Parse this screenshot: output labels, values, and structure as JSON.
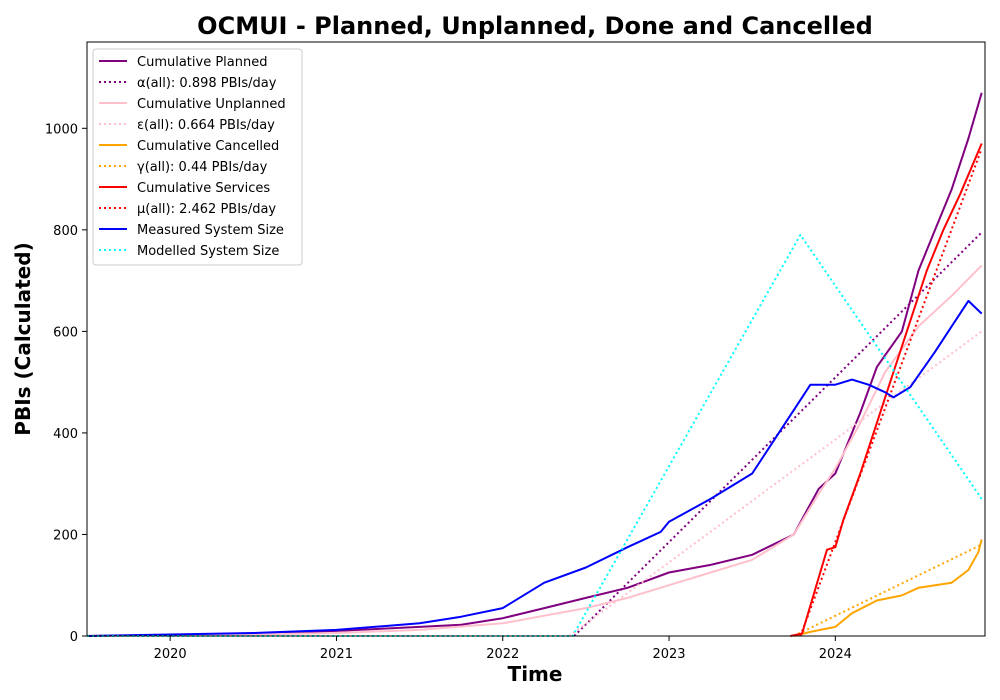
{
  "chart_data": {
    "type": "line",
    "title": "OCMUI - Planned, Unplanned, Done  and Cancelled",
    "xlabel": "Time",
    "ylabel": "PBIs (Calculated)",
    "xlim": [
      2019.5,
      2024.9
    ],
    "ylim": [
      0,
      1170
    ],
    "x_ticks": [
      2020,
      2021,
      2022,
      2023,
      2024
    ],
    "x_tick_labels": [
      "2020",
      "2021",
      "2022",
      "2023",
      "2024"
    ],
    "y_ticks": [
      0,
      200,
      400,
      600,
      800,
      1000
    ],
    "y_tick_labels": [
      "0",
      "200",
      "400",
      "600",
      "800",
      "1000"
    ],
    "grid": false,
    "legend_position": "top-left",
    "series": [
      {
        "name": "Cumulative Planned",
        "color": "#800080",
        "style": "solid",
        "x": [
          2019.5,
          2020.0,
          2020.5,
          2021.0,
          2021.5,
          2021.75,
          2022.0,
          2022.25,
          2022.5,
          2022.75,
          2023.0,
          2023.25,
          2023.5,
          2023.75,
          2023.9,
          2024.0,
          2024.15,
          2024.25,
          2024.4,
          2024.5,
          2024.6,
          2024.7,
          2024.8,
          2024.88
        ],
        "y": [
          0,
          2,
          5,
          10,
          18,
          22,
          35,
          55,
          75,
          95,
          125,
          140,
          160,
          200,
          290,
          320,
          440,
          530,
          600,
          720,
          800,
          880,
          980,
          1070
        ]
      },
      {
        "name": "α(all): 0.898 PBIs/day",
        "color": "#800080",
        "style": "dotted",
        "x": [
          2022.43,
          2024.88
        ],
        "y": [
          0,
          795
        ]
      },
      {
        "name": "Cumulative Unplanned",
        "color": "#ffc0cb",
        "style": "solid",
        "x": [
          2019.5,
          2020.0,
          2020.5,
          2021.0,
          2021.5,
          2022.0,
          2022.25,
          2022.5,
          2022.75,
          2023.0,
          2023.25,
          2023.5,
          2023.75,
          2023.9,
          2024.0,
          2024.15,
          2024.3,
          2024.5,
          2024.7,
          2024.88
        ],
        "y": [
          0,
          1,
          3,
          6,
          12,
          25,
          40,
          55,
          75,
          100,
          125,
          150,
          200,
          280,
          330,
          420,
          520,
          610,
          670,
          730
        ]
      },
      {
        "name": "ε(all): 0.664 PBIs/day",
        "color": "#ffc0cb",
        "style": "dotted",
        "x": [
          2022.4,
          2024.88
        ],
        "y": [
          0,
          600
        ]
      },
      {
        "name": "Cumulative Cancelled",
        "color": "#ffa500",
        "style": "solid",
        "x": [
          2023.75,
          2023.85,
          2024.0,
          2024.1,
          2024.25,
          2024.4,
          2024.5,
          2024.7,
          2024.8,
          2024.86,
          2024.88
        ],
        "y": [
          0,
          8,
          18,
          45,
          70,
          80,
          95,
          105,
          130,
          165,
          190
        ]
      },
      {
        "name": "γ(all): 0.44 PBIs/day",
        "color": "#ffa500",
        "style": "dotted",
        "x": [
          2023.75,
          2024.88
        ],
        "y": [
          0,
          180
        ]
      },
      {
        "name": "Cumulative Services",
        "color": "#ff0000",
        "style": "solid",
        "x": [
          2023.73,
          2023.8,
          2023.85,
          2023.95,
          2024.0,
          2024.05,
          2024.15,
          2024.25,
          2024.35,
          2024.45,
          2024.55,
          2024.65,
          2024.75,
          2024.88
        ],
        "y": [
          0,
          5,
          60,
          170,
          175,
          230,
          320,
          420,
          520,
          620,
          720,
          800,
          870,
          970
        ]
      },
      {
        "name": "μ(all): 2.462 PBIs/day",
        "color": "#ff0000",
        "style": "dotted",
        "x": [
          2023.79,
          2024.88
        ],
        "y": [
          0,
          960
        ]
      },
      {
        "name": "Measured System Size",
        "color": "#0000ff",
        "style": "solid",
        "x": [
          2019.5,
          2020.0,
          2020.5,
          2021.0,
          2021.5,
          2021.75,
          2022.0,
          2022.25,
          2022.5,
          2022.75,
          2022.95,
          2023.0,
          2023.25,
          2023.5,
          2023.6,
          2023.75,
          2023.85,
          2024.0,
          2024.1,
          2024.2,
          2024.3,
          2024.35,
          2024.45,
          2024.6,
          2024.7,
          2024.8,
          2024.88
        ],
        "y": [
          0,
          3,
          6,
          12,
          25,
          38,
          55,
          105,
          135,
          175,
          205,
          225,
          270,
          320,
          370,
          445,
          495,
          495,
          505,
          495,
          480,
          470,
          490,
          560,
          610,
          660,
          635
        ]
      },
      {
        "name": "Modelled System Size",
        "color": "#00ffff",
        "style": "dotted",
        "x": [
          2019.5,
          2022.42,
          2023.79,
          2024.88
        ],
        "y": [
          0,
          0,
          790,
          270
        ]
      }
    ]
  }
}
